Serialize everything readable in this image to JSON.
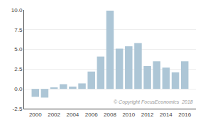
{
  "chart_data": {
    "type": "bar",
    "x": [
      2000,
      2001,
      2002,
      2003,
      2004,
      2005,
      2006,
      2007,
      2008,
      2009,
      2010,
      2011,
      2012,
      2013,
      2014,
      2015,
      2016
    ],
    "values": [
      -1.0,
      -1.1,
      0.2,
      0.6,
      0.3,
      0.7,
      2.2,
      4.1,
      9.9,
      5.1,
      5.4,
      5.8,
      2.9,
      3.5,
      2.7,
      2.1,
      3.5
    ],
    "color": "#adc6d6",
    "xlim": [
      1998.8,
      2017.2
    ],
    "xticks": [
      2000,
      2002,
      2004,
      2006,
      2008,
      2010,
      2012,
      2014,
      2016
    ],
    "ylim": [
      -2.5,
      10.0
    ],
    "yticks": [
      -2.5,
      {
        "value": 0.0,
        "label": "0.0"
      },
      2.5,
      {
        "value": 5.0,
        "label": "5.0"
      },
      7.5,
      {
        "value": 10.0,
        "label": "10.0"
      }
    ],
    "grid": true,
    "annotations": [
      "© Copyright FocusEconomics  2018"
    ]
  }
}
